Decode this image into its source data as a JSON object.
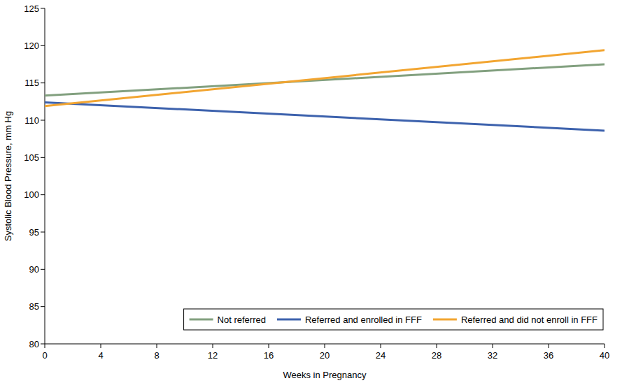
{
  "chart_data": {
    "type": "line",
    "x_label": "Weeks in Pregnancy",
    "y_label": "Systolic Blood Pressure, mm Hg",
    "x": [
      0,
      40
    ],
    "series": [
      {
        "name": "Not referred",
        "color": "#82a07f",
        "values": [
          113.3,
          117.5
        ]
      },
      {
        "name": "Referred and enrolled in FFF",
        "color": "#3d62ad",
        "values": [
          112.4,
          108.6
        ]
      },
      {
        "name": "Referred and did not enroll in FFF",
        "color": "#f2a531",
        "values": [
          111.9,
          119.4
        ]
      }
    ],
    "xlim": [
      0,
      40
    ],
    "xticks": [
      0,
      4,
      8,
      12,
      16,
      20,
      24,
      28,
      32,
      36,
      40
    ],
    "ylim": [
      80,
      125
    ],
    "yticks": [
      80,
      85,
      90,
      95,
      100,
      105,
      110,
      115,
      120,
      125
    ],
    "grid": false,
    "legend": "bottom-right"
  }
}
